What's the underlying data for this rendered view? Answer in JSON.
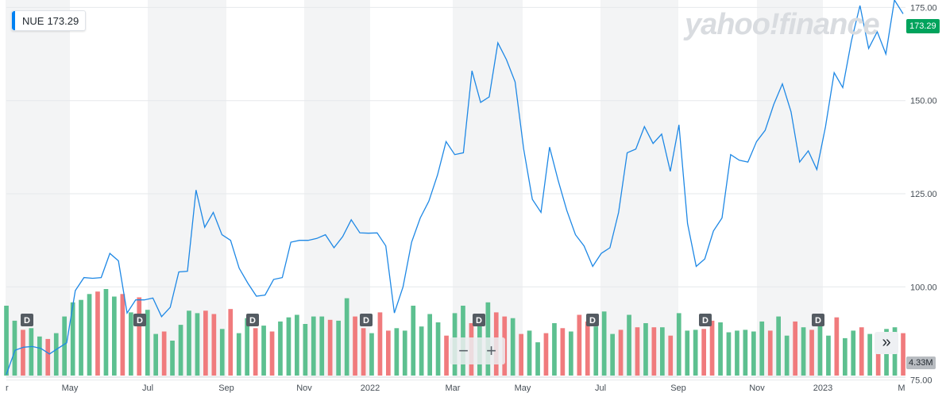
{
  "ticker": {
    "symbol": "NUE",
    "price": "173.29"
  },
  "watermark": "yahoo!finance",
  "price_tag": "173.29",
  "volume_tag": "4.33M",
  "zoom": {
    "minus": "−",
    "plus": "+"
  },
  "more_button": "»",
  "colors": {
    "line": "#1e88e5",
    "up": "#5dc090",
    "down": "#f07b7d",
    "price_tag": "#00a35c",
    "shade": "#f3f4f5"
  },
  "chart_data": {
    "type": "line",
    "ylim": [
      73,
      177
    ],
    "y_ticks": [
      75.0,
      100.0,
      125.0,
      150.0,
      175.0
    ],
    "x_labels": [
      {
        "label": "r",
        "t": 0
      },
      {
        "label": "May",
        "t": 1
      },
      {
        "label": "Jul",
        "t": 2
      },
      {
        "label": "Sep",
        "t": 3
      },
      {
        "label": "Nov",
        "t": 4
      },
      {
        "label": "2022",
        "t": 5
      },
      {
        "label": "Mar",
        "t": 6
      },
      {
        "label": "May",
        "t": 7
      },
      {
        "label": "Jul",
        "t": 8
      },
      {
        "label": "Sep",
        "t": 9
      },
      {
        "label": "Nov",
        "t": 10
      },
      {
        "label": "2023",
        "t": 11
      },
      {
        "label": "M",
        "t": 12
      }
    ],
    "series": [
      {
        "values": [
          76.5,
          83,
          83.8,
          84,
          83.5,
          82,
          83.5,
          85,
          99,
          102.5,
          102.3,
          102.5,
          109,
          107,
          93,
          96.5,
          96.5,
          97,
          92,
          94.5,
          104,
          104.2,
          126,
          116,
          120,
          114,
          112.5,
          105,
          101,
          97.5,
          97.8,
          102,
          102.5,
          112,
          112.5,
          112.5,
          113,
          114,
          110.5,
          113.5,
          118,
          114.5,
          114.4,
          114.5,
          111,
          93,
          100,
          112,
          118.5,
          123,
          130,
          139,
          135.5,
          136,
          158,
          149.5,
          151,
          165.5,
          161,
          155,
          137,
          123.5,
          120,
          137.5,
          128.5,
          120.5,
          114,
          111,
          105.5,
          109,
          110.5,
          120,
          136,
          137,
          143,
          138.5,
          141,
          131,
          143.5,
          117,
          105.5,
          107.5,
          115,
          118.5,
          135.5,
          134,
          133.5,
          139,
          142,
          149,
          154.5,
          147,
          133.5,
          136.5,
          131.5,
          143,
          157.5,
          153.5,
          166,
          175.5,
          164,
          168.5,
          162.5,
          177,
          173.29
        ]
      }
    ],
    "volume": {
      "values": [
        84,
        66,
        55,
        57,
        47,
        44,
        51,
        71,
        88,
        91,
        98,
        101,
        104,
        95,
        98,
        76,
        94,
        79,
        50,
        53,
        42,
        61,
        78,
        75,
        78,
        74,
        56,
        80,
        51,
        69,
        57,
        60,
        53,
        65,
        70,
        73,
        62,
        71,
        71,
        67,
        66,
        93,
        71,
        57,
        51,
        76,
        54,
        57,
        54,
        84,
        59,
        74,
        64,
        48,
        75,
        84,
        63,
        74,
        88,
        76,
        71,
        69,
        50,
        54,
        40,
        51,
        63,
        57,
        53,
        73,
        65,
        59,
        77,
        50,
        55,
        73,
        58,
        63,
        58,
        58,
        48,
        75,
        54,
        55,
        56,
        66,
        64,
        52,
        54,
        55,
        53,
        65,
        54,
        71,
        48,
        65,
        58,
        55,
        63,
        48,
        70,
        45,
        54,
        58,
        50,
        51,
        56,
        58,
        51
      ],
      "up": [
        true,
        true,
        false,
        true,
        true,
        false,
        true,
        true,
        true,
        true,
        true,
        false,
        true,
        true,
        false,
        true,
        false,
        true,
        true,
        false,
        true,
        true,
        true,
        true,
        false,
        false,
        true,
        false,
        true,
        true,
        false,
        true,
        false,
        true,
        true,
        true,
        true,
        true,
        true,
        false,
        true,
        true,
        false,
        false,
        true,
        false,
        false,
        true,
        true,
        true,
        true,
        true,
        true,
        false,
        true,
        true,
        false,
        true,
        true,
        false,
        false,
        true,
        false,
        true,
        true,
        false,
        true,
        false,
        true,
        false,
        false,
        true,
        true,
        true,
        false,
        true,
        false,
        true,
        false,
        true,
        false,
        true,
        true,
        true,
        false,
        false,
        true,
        true,
        true,
        true,
        true,
        true,
        false,
        true,
        true,
        false,
        true,
        false,
        true,
        true,
        false,
        true,
        true,
        false,
        true,
        false,
        true,
        true,
        false
      ]
    }
  }
}
